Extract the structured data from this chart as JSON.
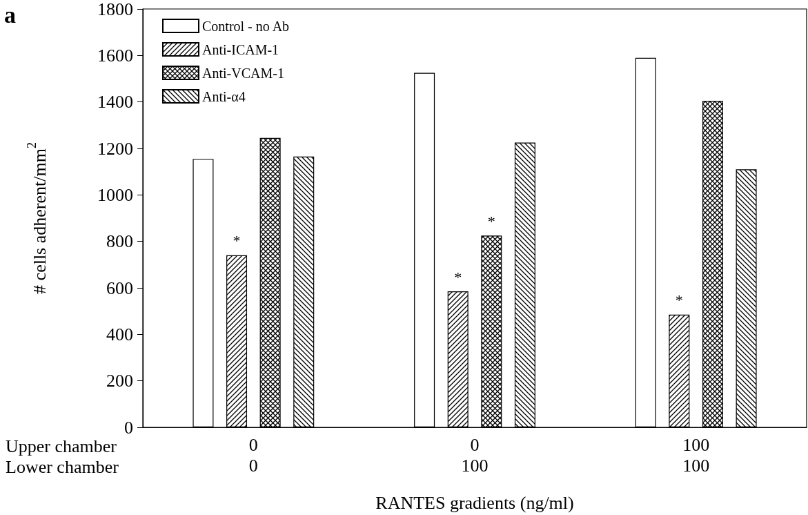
{
  "chart_data": {
    "type": "bar",
    "xlabel": "RANTES gradients (ng/ml)",
    "ylabel": "# cells adherent/mm$^{2}$",
    "categories": [
      "0\n0",
      "0\n100",
      "100\n100"
    ],
    "series": [
      {
        "name": "Control - no Ab",
        "color": "#ffffff",
        "values": [
          1155,
          1525,
          1590
        ]
      },
      {
        "name": "Anti-ICAM-1",
        "color": "#000000",
        "values": [
          740,
          585,
          485
        ],
        "value_labels": [
          "*",
          "*",
          "*"
        ]
      },
      {
        "name": "Anti-VCAM-1",
        "color": "#000000",
        "values": [
          1245,
          825,
          1405
        ],
        "value_labels": [
          null,
          "*",
          null
        ]
      },
      {
        "name": "Anti-α4",
        "color": "#000000",
        "values": [
          1165,
          1225,
          1110
        ]
      }
    ],
    "ylim": [
      0,
      1800
    ],
    "yticks": [
      0,
      200,
      400,
      600,
      800,
      1000,
      1200,
      1400,
      1600,
      1800
    ],
    "grid": false,
    "legend": "top left",
    "annotations": [
      "a",
      "Upper chamber",
      "Lower chamber"
    ]
  }
}
